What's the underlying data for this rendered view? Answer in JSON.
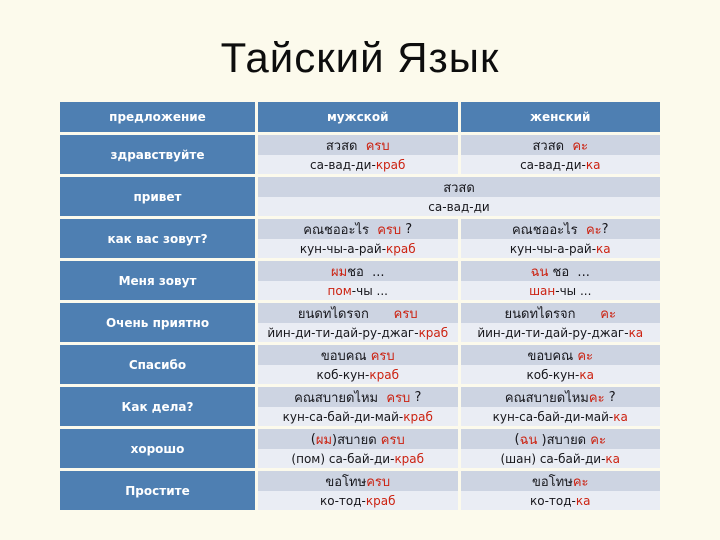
{
  "slide": {
    "title": "Тайский Язык"
  },
  "colors": {
    "background": "#fcfaec",
    "accent_blue": "#4e7fb2",
    "band_dark": "#cdd4e2",
    "band_light": "#eaedf4",
    "highlight_red": "#cc2211",
    "header_text": "#ffffff"
  },
  "table": {
    "headers": {
      "sentence": "предложение",
      "male": "мужской",
      "female": "женский"
    },
    "rows": [
      {
        "label": "здравствуйте",
        "male_thai": [
          {
            "text": "สวสด  ",
            "red": false
          },
          {
            "text": "ครบ",
            "red": true
          }
        ],
        "male_translit": [
          {
            "text": "са-вад-ди-",
            "red": false
          },
          {
            "text": "краб",
            "red": true
          }
        ],
        "female_thai": [
          {
            "text": "สวสด  ",
            "red": false
          },
          {
            "text": "คะ",
            "red": true
          }
        ],
        "female_translit": [
          {
            "text": "са-вад-ди-",
            "red": false
          },
          {
            "text": "ка",
            "red": true
          }
        ]
      },
      {
        "label": "привет",
        "merged": true,
        "thai": [
          {
            "text": "สวสด",
            "red": false
          }
        ],
        "translit": [
          {
            "text": "са-вад-ди",
            "red": false
          }
        ]
      },
      {
        "label": "как вас зовут?",
        "male_thai": [
          {
            "text": "คณชออะไร  ",
            "red": false
          },
          {
            "text": "ครบ",
            "red": true
          },
          {
            "text": " ?",
            "red": false
          }
        ],
        "male_translit": [
          {
            "text": "кун-чы-а-рай-",
            "red": false
          },
          {
            "text": "краб",
            "red": true
          }
        ],
        "female_thai": [
          {
            "text": "คณชออะไร  ",
            "red": false
          },
          {
            "text": "คะ",
            "red": true
          },
          {
            "text": "?",
            "red": false
          }
        ],
        "female_translit": [
          {
            "text": "кун-чы-а-рай-",
            "red": false
          },
          {
            "text": "ка",
            "red": true
          }
        ]
      },
      {
        "label": "Меня зовут",
        "male_thai": [
          {
            "text": "ผม",
            "red": true
          },
          {
            "text": "ชอ  ...",
            "red": false
          }
        ],
        "male_translit": [
          {
            "text": "пом",
            "red": true
          },
          {
            "text": "-чы ...",
            "red": false
          }
        ],
        "female_thai": [
          {
            "text": "ฉน",
            "red": true
          },
          {
            "text": " ชอ  ...",
            "red": false
          }
        ],
        "female_translit": [
          {
            "text": "шан",
            "red": true
          },
          {
            "text": "-чы ...",
            "red": false
          }
        ]
      },
      {
        "label": "Очень приятно",
        "male_thai": [
          {
            "text": "ยนดทไดรจก      ",
            "red": false
          },
          {
            "text": "ครบ",
            "red": true
          }
        ],
        "male_translit": [
          {
            "text": "йин-ди-ти-дай-ру-джаг-",
            "red": false
          },
          {
            "text": "краб",
            "red": true
          }
        ],
        "female_thai": [
          {
            "text": "ยนดทไดรจก      ",
            "red": false
          },
          {
            "text": "คะ",
            "red": true
          }
        ],
        "female_translit": [
          {
            "text": "йин-ди-ти-дай-ру-джаг-",
            "red": false
          },
          {
            "text": "ка",
            "red": true
          }
        ]
      },
      {
        "label": "Спасибо",
        "male_thai": [
          {
            "text": "ขอบคณ ",
            "red": false
          },
          {
            "text": "ครบ",
            "red": true
          }
        ],
        "male_translit": [
          {
            "text": "коб-кун-",
            "red": false
          },
          {
            "text": "краб",
            "red": true
          }
        ],
        "female_thai": [
          {
            "text": "ขอบคณ ",
            "red": false
          },
          {
            "text": "คะ",
            "red": true
          }
        ],
        "female_translit": [
          {
            "text": "коб-кун-",
            "red": false
          },
          {
            "text": "ка",
            "red": true
          }
        ]
      },
      {
        "label": "Как дела?",
        "male_thai": [
          {
            "text": "คณสบายดไหม  ",
            "red": false
          },
          {
            "text": "ครบ",
            "red": true
          },
          {
            "text": " ?",
            "red": false
          }
        ],
        "male_translit": [
          {
            "text": "кун-са-бай-ди-май-",
            "red": false
          },
          {
            "text": "краб",
            "red": true
          }
        ],
        "female_thai": [
          {
            "text": "คณสบายดไหม",
            "red": false
          },
          {
            "text": "คะ",
            "red": true
          },
          {
            "text": " ?",
            "red": false
          }
        ],
        "female_translit": [
          {
            "text": "кун-са-бай-ди-май-",
            "red": false
          },
          {
            "text": "ка",
            "red": true
          }
        ]
      },
      {
        "label": "хорошо",
        "male_thai": [
          {
            "text": "(",
            "red": false
          },
          {
            "text": "ผม",
            "red": true
          },
          {
            "text": ")สบายด ",
            "red": false
          },
          {
            "text": "ครบ",
            "red": true
          }
        ],
        "male_translit": [
          {
            "text": "(пом) са-бай-ди-",
            "red": false
          },
          {
            "text": "краб",
            "red": true
          }
        ],
        "female_thai": [
          {
            "text": "(",
            "red": false
          },
          {
            "text": "ฉน",
            "red": true
          },
          {
            "text": " )สบายด ",
            "red": false
          },
          {
            "text": "คะ",
            "red": true
          }
        ],
        "female_translit": [
          {
            "text": "(шан) са-бай-ди-",
            "red": false
          },
          {
            "text": "ка",
            "red": true
          }
        ]
      },
      {
        "label": "Простите",
        "male_thai": [
          {
            "text": "ขอโทษ",
            "red": false
          },
          {
            "text": "ครบ",
            "red": true
          }
        ],
        "male_translit": [
          {
            "text": "ко-тод-",
            "red": false
          },
          {
            "text": "краб",
            "red": true
          }
        ],
        "female_thai": [
          {
            "text": "ขอโทษ",
            "red": false
          },
          {
            "text": "คะ",
            "red": true
          }
        ],
        "female_translit": [
          {
            "text": "ко-тод-",
            "red": false
          },
          {
            "text": "ка",
            "red": true
          }
        ]
      }
    ]
  }
}
